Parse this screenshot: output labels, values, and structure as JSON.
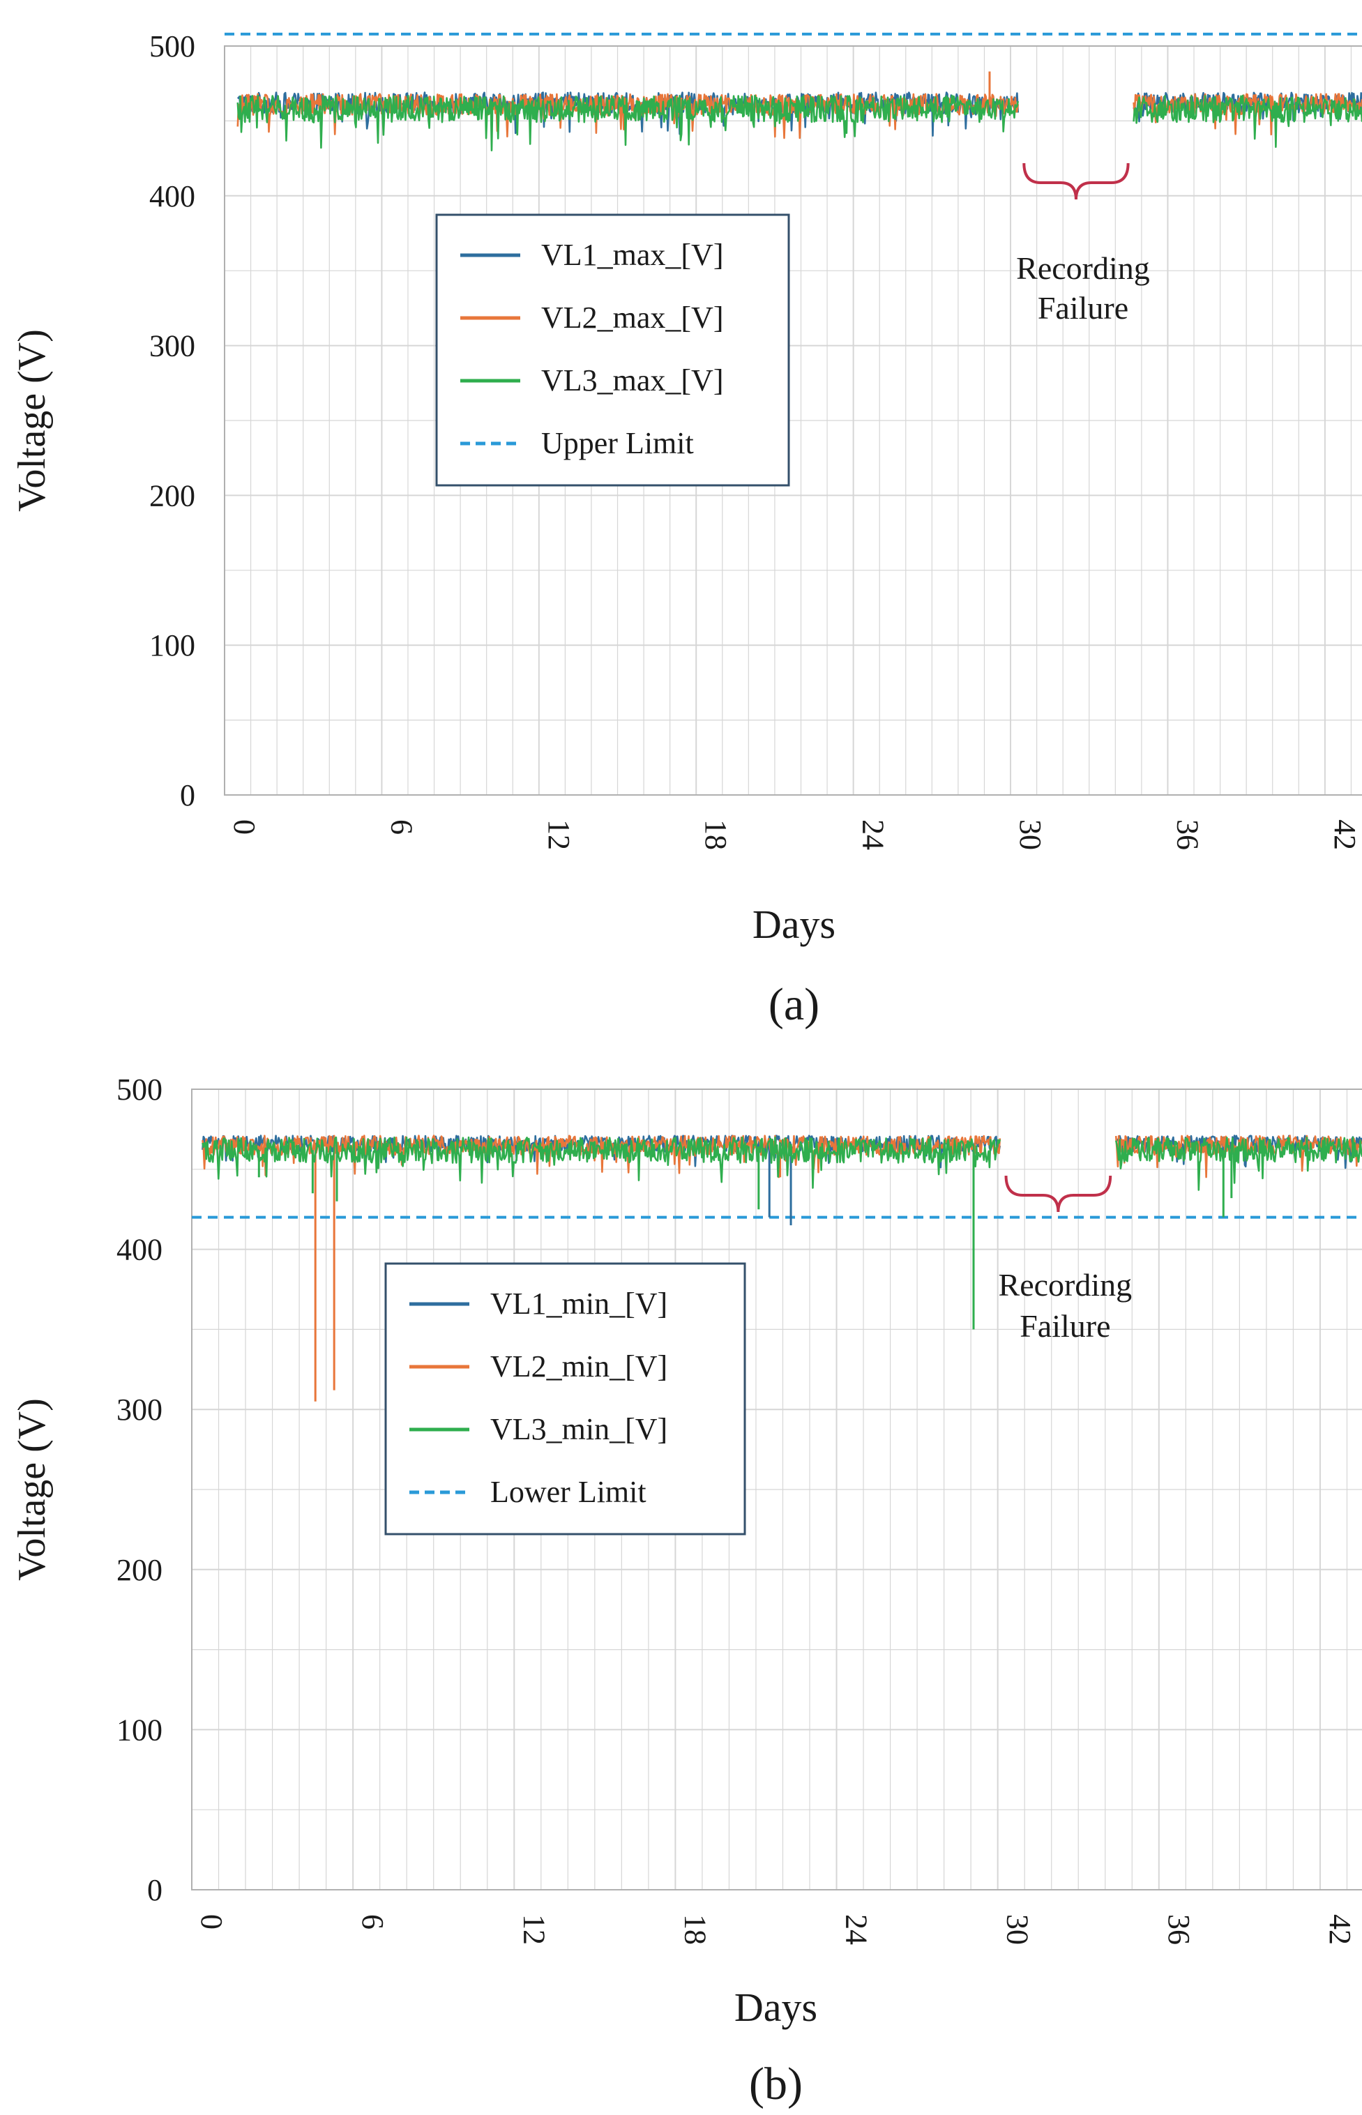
{
  "colors": {
    "vl1": "#2e6e9e",
    "vl2": "#e8763a",
    "vl3": "#2fae4e",
    "limit": "#2a9ad8",
    "brace": "#c0304a",
    "grid": "#d6d6d6",
    "axis": "#b0b0b0",
    "legend_border": "#34506b"
  },
  "chart_data": [
    {
      "type": "line",
      "caption": "(a)",
      "xlabel": "Days",
      "ylabel": "Voltage (V)",
      "xlim": [
        0,
        44
      ],
      "ylim": [
        0,
        500
      ],
      "x_ticks": [
        "0",
        "6",
        "12",
        "18",
        "24",
        "30",
        "36",
        "42"
      ],
      "y_ticks": [
        "0",
        "100",
        "200",
        "300",
        "400",
        "500"
      ],
      "grid": true,
      "legend_position": "left-center",
      "legend": [
        "VL1_max_[V]",
        "VL2_max_[V]",
        "VL3_max_[V]",
        "Upper Limit"
      ],
      "series": [
        {
          "name": "VL1_max_[V]",
          "base": 462,
          "amp": 7,
          "dips": [],
          "spikes": []
        },
        {
          "name": "VL2_max_[V]",
          "base": 461,
          "amp": 7,
          "dips": [],
          "spikes": [
            [
              29.2,
              483
            ]
          ]
        },
        {
          "name": "VL3_max_[V]",
          "base": 458,
          "amp": 9,
          "dips": [],
          "spikes": []
        }
      ],
      "segments": [
        [
          0.5,
          30.3
        ],
        [
          34.7,
          43.6
        ]
      ],
      "limit": {
        "name": "Upper Limit",
        "value": 508
      },
      "annotation": {
        "lines": [
          "Recording",
          "Failure"
        ],
        "x_range": [
          30.3,
          34.7
        ]
      }
    },
    {
      "type": "line",
      "caption": "(b)",
      "xlabel": "Days",
      "ylabel": "Voltage (V)",
      "xlim": [
        0,
        44
      ],
      "ylim": [
        0,
        500
      ],
      "x_ticks": [
        "0",
        "6",
        "12",
        "18",
        "24",
        "30",
        "36",
        "42"
      ],
      "y_ticks": [
        "0",
        "100",
        "200",
        "300",
        "400",
        "500"
      ],
      "grid": true,
      "legend_position": "left-center",
      "legend": [
        "VL1_min_[V]",
        "VL2_min_[V]",
        "VL3_min_[V]",
        "Lower Limit"
      ],
      "series": [
        {
          "name": "VL1_min_[V]",
          "base": 466,
          "amp": 5,
          "dips": [
            [
              21.5,
              420
            ],
            [
              22.3,
              415
            ]
          ],
          "spikes": []
        },
        {
          "name": "VL2_min_[V]",
          "base": 465,
          "amp": 6,
          "dips": [
            [
              4.6,
              305
            ],
            [
              5.3,
              312
            ],
            [
              21.9,
              445
            ]
          ],
          "spikes": []
        },
        {
          "name": "VL3_min_[V]",
          "base": 462,
          "amp": 8,
          "dips": [
            [
              2.5,
              445
            ],
            [
              4.5,
              435
            ],
            [
              5.4,
              430
            ],
            [
              21.1,
              425
            ],
            [
              29.1,
              350
            ],
            [
              38.4,
              420
            ],
            [
              38.7,
              432
            ]
          ],
          "spikes": []
        }
      ],
      "segments": [
        [
          0.4,
          30.1
        ],
        [
          34.4,
          43.6
        ]
      ],
      "limit": {
        "name": "Lower Limit",
        "value": 420
      },
      "annotation": {
        "lines": [
          "Recording",
          "Failure"
        ],
        "x_range": [
          30.1,
          34.4
        ]
      }
    }
  ]
}
